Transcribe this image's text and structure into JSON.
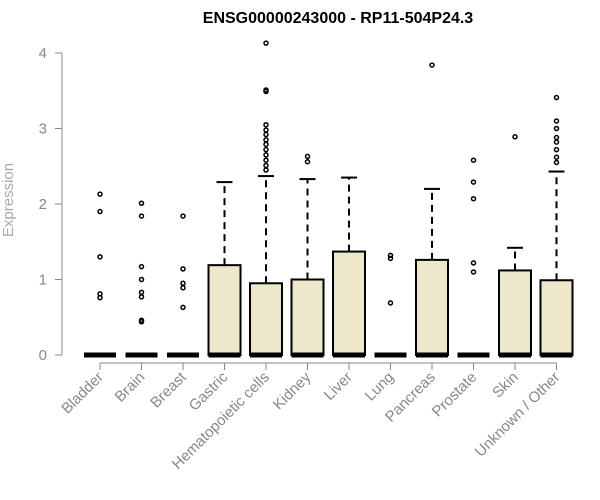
{
  "chart_data": {
    "type": "box",
    "title": "ENSG00000243000 - RP11-504P24.3",
    "xlabel": "",
    "ylabel": "Expression",
    "ylim": [
      0,
      4
    ],
    "yticks": [
      0,
      1,
      2,
      3,
      4
    ],
    "grid": false,
    "box_color": "#ede7cc",
    "categories": [
      "Bladder",
      "Brain",
      "Breast",
      "Gastric",
      "Hematopoietic cells",
      "Kidney",
      "Liver",
      "Lung",
      "Pancreas",
      "Prostate",
      "Skin",
      "Unknown / Other"
    ],
    "boxes": [
      {
        "category": "Bladder",
        "min": 0,
        "q1": 0,
        "median": 0,
        "q3": 0,
        "max": 0,
        "outliers": [
          2.13,
          1.9,
          1.3,
          0.81,
          0.76
        ]
      },
      {
        "category": "Brain",
        "min": 0,
        "q1": 0,
        "median": 0,
        "q3": 0,
        "max": 0,
        "outliers": [
          2.01,
          1.84,
          1.17,
          1.0,
          0.83,
          0.77,
          0.46,
          0.44
        ]
      },
      {
        "category": "Breast",
        "min": 0,
        "q1": 0,
        "median": 0,
        "q3": 0,
        "max": 0,
        "outliers": [
          1.84,
          1.14,
          0.95,
          0.89,
          0.63
        ]
      },
      {
        "category": "Gastric",
        "min": 0,
        "q1": 0,
        "median": 0,
        "q3": 1.19,
        "max": 2.29,
        "outliers": []
      },
      {
        "category": "Hematopoietic cells",
        "min": 0,
        "q1": 0,
        "median": 0,
        "q3": 0.95,
        "max": 2.37,
        "outliers": [
          4.13,
          3.51,
          3.49,
          3.05,
          2.98,
          2.92,
          2.85,
          2.79,
          2.72,
          2.65,
          2.58,
          2.51,
          2.45
        ]
      },
      {
        "category": "Kidney",
        "min": 0,
        "q1": 0,
        "median": 0,
        "q3": 1.0,
        "max": 2.33,
        "outliers": [
          2.63,
          2.56
        ]
      },
      {
        "category": "Liver",
        "min": 0,
        "q1": 0,
        "median": 0,
        "q3": 1.37,
        "max": 2.35,
        "outliers": []
      },
      {
        "category": "Lung",
        "min": 0,
        "q1": 0,
        "median": 0,
        "q3": 0,
        "max": 0,
        "outliers": [
          1.32,
          1.28,
          0.69
        ]
      },
      {
        "category": "Pancreas",
        "min": 0,
        "q1": 0,
        "median": 0,
        "q3": 1.26,
        "max": 2.2,
        "outliers": [
          3.84
        ]
      },
      {
        "category": "Prostate",
        "min": 0,
        "q1": 0,
        "median": 0,
        "q3": 0,
        "max": 0,
        "outliers": [
          2.58,
          2.29,
          2.07,
          1.22,
          1.1
        ]
      },
      {
        "category": "Skin",
        "min": 0,
        "q1": 0,
        "median": 0,
        "q3": 1.12,
        "max": 1.42,
        "outliers": [
          2.89
        ]
      },
      {
        "category": "Unknown / Other",
        "min": 0,
        "q1": 0,
        "median": 0,
        "q3": 0.99,
        "max": 2.43,
        "outliers": [
          3.41,
          3.1,
          3.0,
          2.88,
          2.82,
          2.72,
          2.62,
          2.55
        ]
      }
    ]
  }
}
